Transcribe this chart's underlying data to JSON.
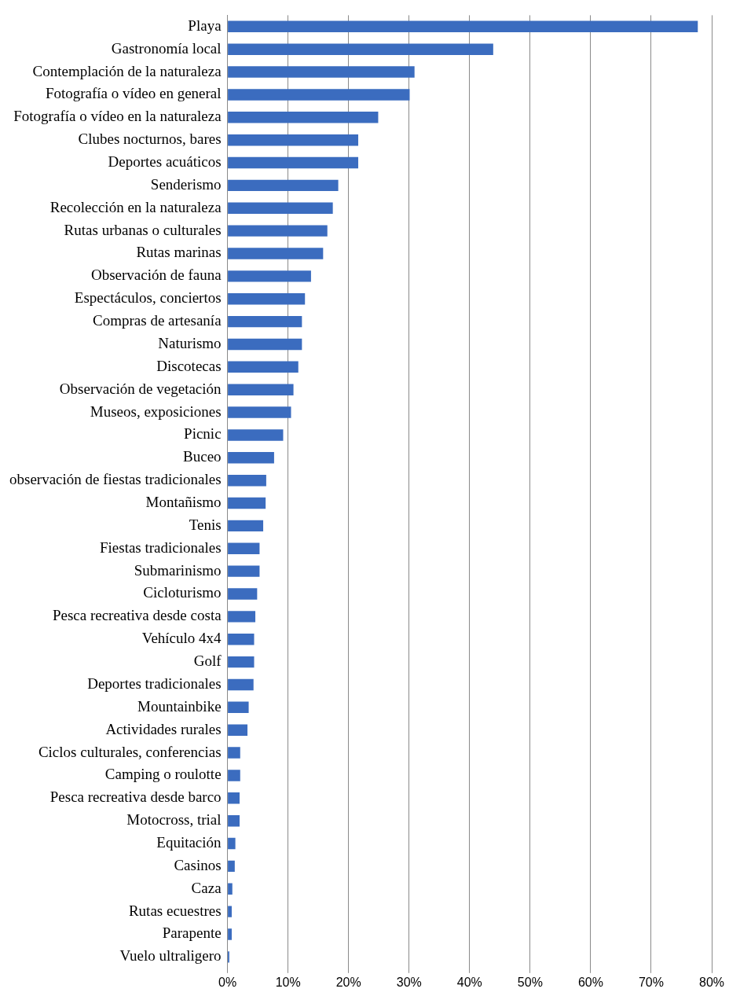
{
  "chart_data": {
    "type": "bar",
    "orientation": "horizontal",
    "color": "#3b6cbf",
    "categories": [
      "Playa",
      "Gastronomía local",
      "Contemplación de la naturaleza",
      "Fotografía o vídeo en general",
      "Fotografía o vídeo en la naturaleza",
      "Clubes nocturnos, bares",
      "Deportes acuáticos",
      "Senderismo",
      "Recolección en la naturaleza",
      "Rutas urbanas o culturales",
      "Rutas marinas",
      "Observación de fauna",
      "Espectáculos, conciertos",
      "Compras de artesanía",
      "Naturismo",
      "Discotecas",
      "Observación de vegetación",
      "Museos, exposiciones",
      "Picnic",
      "Buceo",
      "observación de fiestas tradicionales",
      "Montañismo",
      "Tenis",
      "Fiestas tradicionales",
      "Submarinismo",
      "Cicloturismo",
      "Pesca recreativa desde costa",
      "Vehículo 4x4",
      "Golf",
      "Deportes tradicionales",
      "Mountainbike",
      "Actividades rurales",
      "Ciclos culturales, conferencias",
      "Camping o roulotte",
      "Pesca recreativa desde barco",
      "Motocross, trial",
      "Equitación",
      "Casinos",
      "Caza",
      "Rutas ecuestres",
      "Parapente",
      "Vuelo ultraligero"
    ],
    "values": [
      77.7,
      43.9,
      30.9,
      30.1,
      24.9,
      21.6,
      21.6,
      18.3,
      17.4,
      16.5,
      15.8,
      13.8,
      12.8,
      12.3,
      12.3,
      11.7,
      10.9,
      10.5,
      9.2,
      7.7,
      6.4,
      6.3,
      5.9,
      5.3,
      5.3,
      4.9,
      4.6,
      4.4,
      4.4,
      4.3,
      3.5,
      3.3,
      2.1,
      2.1,
      2.0,
      2.0,
      1.3,
      1.2,
      0.8,
      0.7,
      0.7,
      0.3
    ],
    "xlim": [
      0,
      80
    ],
    "xticks": [
      {
        "value": 0,
        "label": "0%"
      },
      {
        "value": 10,
        "label": "10%"
      },
      {
        "value": 20,
        "label": "20%"
      },
      {
        "value": 30,
        "label": "30%"
      },
      {
        "value": 40,
        "label": "40%"
      },
      {
        "value": 50,
        "label": "50%"
      },
      {
        "value": 60,
        "label": "60%"
      },
      {
        "value": 70,
        "label": "70%"
      },
      {
        "value": 80,
        "label": "80%"
      }
    ],
    "grid": "x",
    "legend": false
  }
}
